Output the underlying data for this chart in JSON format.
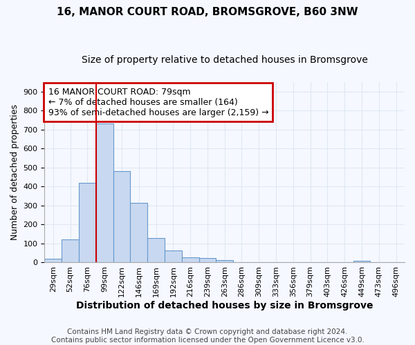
{
  "title": "16, MANOR COURT ROAD, BROMSGROVE, B60 3NW",
  "subtitle": "Size of property relative to detached houses in Bromsgrove",
  "xlabel": "Distribution of detached houses by size in Bromsgrove",
  "ylabel": "Number of detached properties",
  "footer_line1": "Contains HM Land Registry data © Crown copyright and database right 2024.",
  "footer_line2": "Contains public sector information licensed under the Open Government Licence v3.0.",
  "categories": [
    "29sqm",
    "52sqm",
    "76sqm",
    "99sqm",
    "122sqm",
    "146sqm",
    "169sqm",
    "192sqm",
    "216sqm",
    "239sqm",
    "263sqm",
    "286sqm",
    "309sqm",
    "333sqm",
    "356sqm",
    "379sqm",
    "403sqm",
    "426sqm",
    "449sqm",
    "473sqm",
    "496sqm"
  ],
  "values": [
    20,
    120,
    420,
    730,
    480,
    315,
    130,
    65,
    28,
    25,
    11,
    0,
    0,
    0,
    0,
    0,
    0,
    0,
    8,
    0,
    0
  ],
  "bar_color": "#c8d8f0",
  "bar_edge_color": "#6699cc",
  "vline_x_index": 2,
  "vline_color": "#cc0000",
  "annotation_box_text": "16 MANOR COURT ROAD: 79sqm\n← 7% of detached houses are smaller (164)\n93% of semi-detached houses are larger (2,159) →",
  "annotation_box_color": "#cc0000",
  "ylim": [
    0,
    950
  ],
  "yticks": [
    0,
    100,
    200,
    300,
    400,
    500,
    600,
    700,
    800,
    900
  ],
  "background_color": "#f5f8ff",
  "grid_color": "#e0e8f0",
  "title_fontsize": 11,
  "subtitle_fontsize": 10,
  "xlabel_fontsize": 10,
  "ylabel_fontsize": 9,
  "tick_fontsize": 8,
  "annotation_fontsize": 9,
  "footer_fontsize": 7.5
}
